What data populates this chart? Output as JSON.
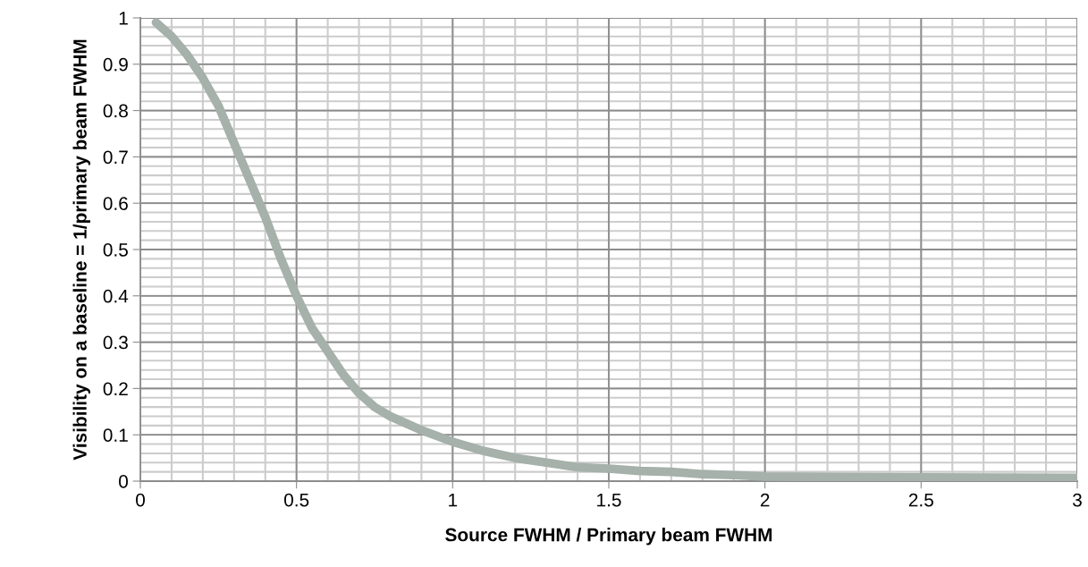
{
  "chart_data": {
    "type": "line",
    "xlabel": "Source FWHM / Primary beam FWHM",
    "ylabel": "Visibility on a baseline = 1/primary beam FWHM",
    "series": [
      {
        "color": "#a5b1aa",
        "x": [
          0.05,
          0.1,
          0.15,
          0.2,
          0.25,
          0.3,
          0.35,
          0.4,
          0.45,
          0.5,
          0.55,
          0.6,
          0.65,
          0.7,
          0.75,
          0.8,
          0.9,
          1.0,
          1.1,
          1.2,
          1.3,
          1.4,
          1.5,
          1.6,
          1.7,
          1.8,
          1.9,
          2.0,
          2.2,
          2.5,
          3.0
        ],
        "values": [
          0.99,
          0.96,
          0.92,
          0.87,
          0.81,
          0.73,
          0.65,
          0.57,
          0.48,
          0.4,
          0.33,
          0.28,
          0.23,
          0.19,
          0.16,
          0.14,
          0.11,
          0.085,
          0.065,
          0.05,
          0.04,
          0.03,
          0.027,
          0.022,
          0.02,
          0.015,
          0.013,
          0.01,
          0.009,
          0.008,
          0.007
        ]
      }
    ],
    "xlim": [
      0,
      3
    ],
    "xticks": [
      0,
      0.5,
      1,
      1.5,
      2,
      2.5,
      3
    ],
    "ylim": [
      0,
      1
    ],
    "yticks": [
      0,
      0.1,
      0.2,
      0.3,
      0.4,
      0.5,
      0.6,
      0.7,
      0.8,
      0.9,
      1
    ],
    "grid": true,
    "marker": "none",
    "line_style": "solid"
  }
}
